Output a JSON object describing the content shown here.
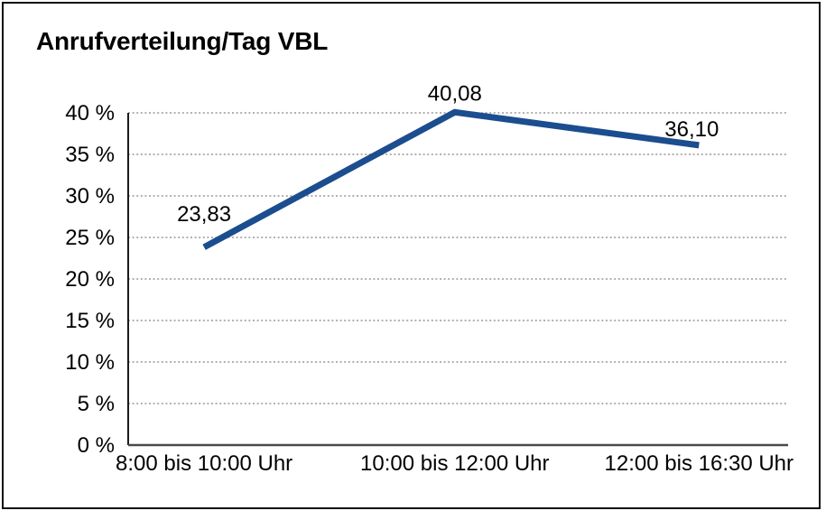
{
  "title": "Anrufverteilung/Tag VBL",
  "colors": {
    "background": "#ffffff",
    "frame": "#0e0e0e",
    "line": "#1b4d8f",
    "grid": "#828282",
    "x_axis": "#4a4a4a",
    "y_axis": "#1a1a1a",
    "text": "#000000"
  },
  "chart_data": {
    "type": "line",
    "title": "Anrufverteilung/Tag VBL",
    "categories": [
      "8:00 bis 10:00 Uhr",
      "10:00 bis 12:00 Uhr",
      "12:00 bis 16:30 Uhr"
    ],
    "values": [
      23.83,
      40.08,
      36.1
    ],
    "value_labels": [
      "23,83",
      "40,08",
      "36,10"
    ],
    "series_name": "Anrufverteilung",
    "xlabel": "",
    "ylabel": "",
    "ylim": [
      0,
      40
    ],
    "ytick_step": 5,
    "ytick_labels": [
      "0 %",
      "5 %",
      "10 %",
      "15 %",
      "20 %",
      "25 %",
      "30 %",
      "35 %",
      "40 %"
    ],
    "grid": "horizontal-dotted",
    "legend_position": "none"
  }
}
